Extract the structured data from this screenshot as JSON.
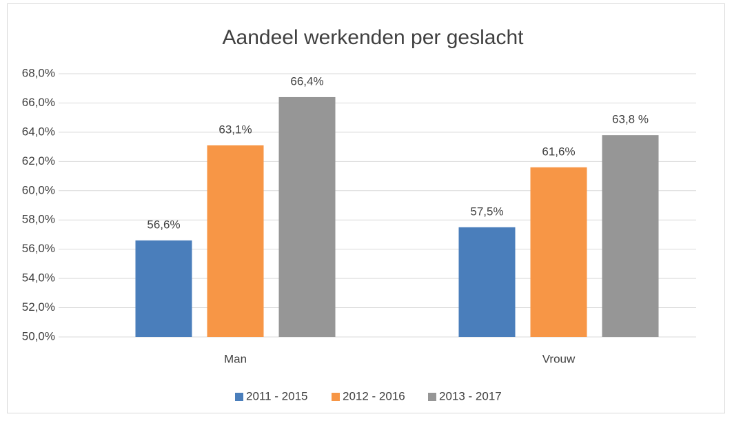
{
  "chart_data": {
    "type": "bar",
    "title": "Aandeel werkenden per geslacht",
    "categories": [
      "Man",
      "Vrouw"
    ],
    "series": [
      {
        "name": "2011 - 2015",
        "color": "#4a7ebb",
        "values": [
          56.6,
          57.5
        ],
        "value_labels": [
          "56,6%",
          "57,5%"
        ]
      },
      {
        "name": "2012 - 2016",
        "color": "#f79646",
        "values": [
          63.1,
          61.6
        ],
        "value_labels": [
          "63,1%",
          "61,6%"
        ]
      },
      {
        "name": "2013 - 2017",
        "color": "#969696",
        "values": [
          66.4,
          63.8
        ],
        "value_labels": [
          "66,4%",
          "63,8 %"
        ]
      }
    ],
    "ylim": [
      50,
      68
    ],
    "yticks": [
      {
        "value": 50,
        "label": "50,0%"
      },
      {
        "value": 52,
        "label": "52,0%"
      },
      {
        "value": 54,
        "label": "54,0%"
      },
      {
        "value": 56,
        "label": "56,0%"
      },
      {
        "value": 58,
        "label": "58,0%"
      },
      {
        "value": 60,
        "label": "60,0%"
      },
      {
        "value": 62,
        "label": "62,0%"
      },
      {
        "value": 64,
        "label": "64,0%"
      },
      {
        "value": 66,
        "label": "66,0%"
      },
      {
        "value": 68,
        "label": "68,0%"
      }
    ],
    "grid": true,
    "legend": "bottom"
  }
}
